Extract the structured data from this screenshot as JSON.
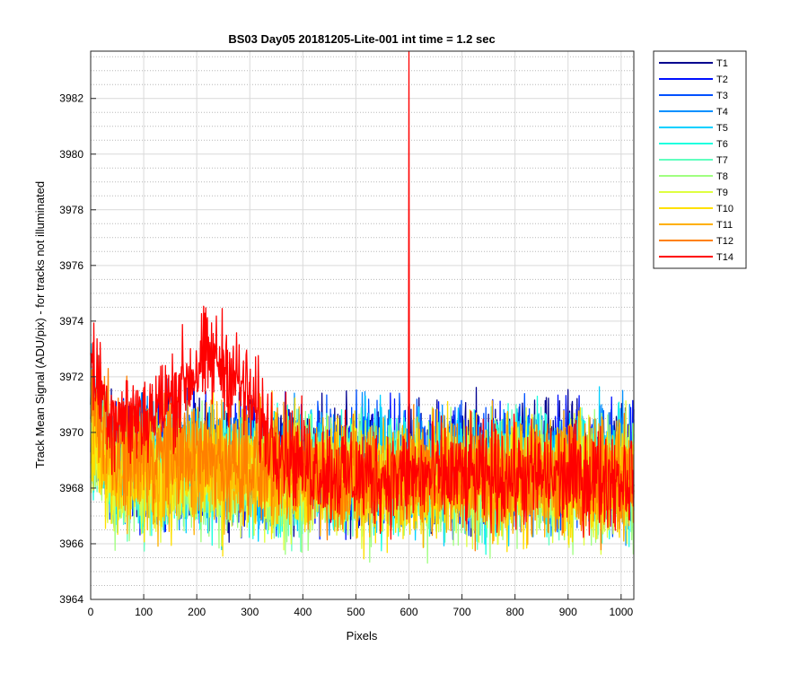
{
  "chart_data": {
    "type": "line",
    "title": "BS03 Day05 20181205-Lite-001 int time = 1.2 sec",
    "xlabel": "Pixels",
    "ylabel": "Track Mean Signal (ADU/pix) - for tracks not illuminated",
    "xlim": [
      0,
      1024
    ],
    "ylim": [
      3964,
      3983.7
    ],
    "xticks": [
      0,
      100,
      200,
      300,
      400,
      500,
      600,
      700,
      800,
      900,
      1000
    ],
    "yticks": [
      3964,
      3966,
      3968,
      3970,
      3972,
      3974,
      3976,
      3978,
      3980,
      3982
    ],
    "grid": "major-and-minor",
    "legend_position": "outside-right",
    "series": [
      {
        "name": "T1",
        "color": "#00008f",
        "left_level": 3969.2,
        "right_level": 3968.9,
        "noise": 1.5
      },
      {
        "name": "T2",
        "color": "#0010ff",
        "left_level": 3969.0,
        "right_level": 3968.8,
        "noise": 1.5
      },
      {
        "name": "T3",
        "color": "#0050ff",
        "left_level": 3969.0,
        "right_level": 3968.8,
        "noise": 1.5
      },
      {
        "name": "T4",
        "color": "#0090ff",
        "left_level": 3968.9,
        "right_level": 3968.7,
        "noise": 1.5
      },
      {
        "name": "T5",
        "color": "#00d0ff",
        "left_level": 3968.8,
        "right_level": 3968.6,
        "noise": 1.5
      },
      {
        "name": "T6",
        "color": "#20ffdf",
        "left_level": 3968.7,
        "right_level": 3968.5,
        "noise": 1.5
      },
      {
        "name": "T7",
        "color": "#60ffbf",
        "left_level": 3968.6,
        "right_level": 3968.4,
        "noise": 1.5
      },
      {
        "name": "T8",
        "color": "#a0ff80",
        "left_level": 3968.5,
        "right_level": 3968.3,
        "noise": 1.5
      },
      {
        "name": "T9",
        "color": "#dfff40",
        "left_level": 3968.5,
        "right_level": 3968.3,
        "noise": 1.5
      },
      {
        "name": "T10",
        "color": "#ffe000",
        "left_level": 3968.6,
        "right_level": 3968.3,
        "noise": 1.5
      },
      {
        "name": "T11",
        "color": "#ffb000",
        "left_level": 3969.0,
        "right_level": 3968.4,
        "noise": 1.5
      },
      {
        "name": "T12",
        "color": "#ff8000",
        "left_level": 3969.6,
        "right_level": 3968.4,
        "noise": 1.4
      },
      {
        "name": "T14",
        "color": "#ff0000",
        "left_level": 3970.8,
        "right_level": 3968.4,
        "noise": 1.3,
        "peak_level": 3972.6,
        "peak_x": 230,
        "spike_x": 600,
        "spike_y": 3983.7
      }
    ]
  }
}
